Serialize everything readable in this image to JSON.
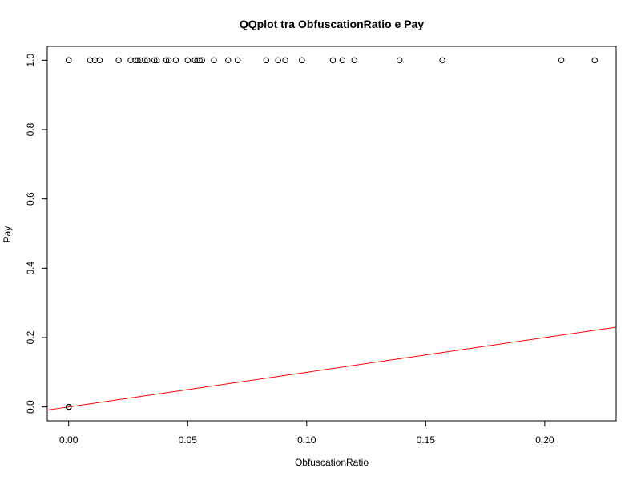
{
  "chart_data": {
    "type": "scatter",
    "title": "QQplot tra ObfuscationRatio e Pay",
    "xlabel": "ObfuscationRatio",
    "ylabel": "Pay",
    "xlim": [
      -0.009,
      0.23
    ],
    "ylim": [
      -0.04,
      1.04
    ],
    "xticks": [
      0.0,
      0.05,
      0.1,
      0.15,
      0.2
    ],
    "xtick_labels": [
      "0.00",
      "0.05",
      "0.10",
      "0.15",
      "0.20"
    ],
    "yticks": [
      0.0,
      0.2,
      0.4,
      0.6,
      0.8,
      1.0
    ],
    "ytick_labels": [
      "0.0",
      "0.2",
      "0.4",
      "0.6",
      "0.8",
      "1.0"
    ],
    "grid": false,
    "point_color": "#000000",
    "line_color": "#ff0000",
    "points": [
      {
        "x": 0.0,
        "y": 0
      },
      {
        "x": 0.0,
        "y": 0
      },
      {
        "x": 0.0,
        "y": 0
      },
      {
        "x": 0.0,
        "y": 0
      },
      {
        "x": 0.0,
        "y": 0
      },
      {
        "x": 0.0,
        "y": 1
      },
      {
        "x": 0.0,
        "y": 1
      },
      {
        "x": 0.0,
        "y": 1
      },
      {
        "x": 0.009,
        "y": 1
      },
      {
        "x": 0.011,
        "y": 1
      },
      {
        "x": 0.013,
        "y": 1
      },
      {
        "x": 0.021,
        "y": 1
      },
      {
        "x": 0.026,
        "y": 1
      },
      {
        "x": 0.028,
        "y": 1
      },
      {
        "x": 0.029,
        "y": 1
      },
      {
        "x": 0.03,
        "y": 1
      },
      {
        "x": 0.032,
        "y": 1
      },
      {
        "x": 0.033,
        "y": 1
      },
      {
        "x": 0.036,
        "y": 1
      },
      {
        "x": 0.037,
        "y": 1
      },
      {
        "x": 0.041,
        "y": 1
      },
      {
        "x": 0.042,
        "y": 1
      },
      {
        "x": 0.045,
        "y": 1
      },
      {
        "x": 0.05,
        "y": 1
      },
      {
        "x": 0.053,
        "y": 1
      },
      {
        "x": 0.054,
        "y": 1
      },
      {
        "x": 0.055,
        "y": 1
      },
      {
        "x": 0.056,
        "y": 1
      },
      {
        "x": 0.056,
        "y": 1
      },
      {
        "x": 0.061,
        "y": 1
      },
      {
        "x": 0.067,
        "y": 1
      },
      {
        "x": 0.071,
        "y": 1
      },
      {
        "x": 0.083,
        "y": 1
      },
      {
        "x": 0.088,
        "y": 1
      },
      {
        "x": 0.091,
        "y": 1
      },
      {
        "x": 0.098,
        "y": 1
      },
      {
        "x": 0.098,
        "y": 1
      },
      {
        "x": 0.111,
        "y": 1
      },
      {
        "x": 0.115,
        "y": 1
      },
      {
        "x": 0.12,
        "y": 1
      },
      {
        "x": 0.139,
        "y": 1
      },
      {
        "x": 0.157,
        "y": 1
      },
      {
        "x": 0.207,
        "y": 1
      },
      {
        "x": 0.221,
        "y": 1
      }
    ],
    "reference_line": {
      "intercept": 0,
      "slope": 1
    }
  }
}
